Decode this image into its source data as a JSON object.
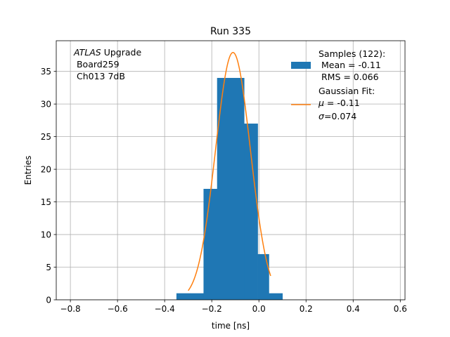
{
  "chart_data": {
    "type": "bar",
    "title": "Run 335",
    "xlabel": "time [ns]",
    "ylabel": "Entries",
    "xlim": [
      -0.86,
      0.62
    ],
    "ylim": [
      0,
      39.7
    ],
    "grid": true,
    "xticks": [
      -0.8,
      -0.6,
      -0.4,
      -0.2,
      0.0,
      0.2,
      0.4,
      0.6
    ],
    "xtick_labels": [
      "−0.8",
      "−0.6",
      "−0.4",
      "−0.2",
      "0.0",
      "0.2",
      "0.4",
      "0.6"
    ],
    "yticks": [
      0,
      5,
      10,
      15,
      20,
      25,
      30,
      35
    ],
    "ytick_labels": [
      "0",
      "5",
      "10",
      "15",
      "20",
      "25",
      "30",
      "35"
    ],
    "histogram": {
      "bin_edges": [
        -0.35,
        -0.2925,
        -0.235,
        -0.1775,
        -0.12,
        -0.0625,
        -0.005,
        0.0425,
        0.1
      ],
      "counts": [
        1,
        1,
        17,
        34,
        34,
        27,
        7,
        1
      ],
      "color": "#1f77b4"
    },
    "gaussian_fit": {
      "amplitude": 37.9,
      "mu": -0.11,
      "sigma": 0.074,
      "x_range": [
        -0.3,
        0.05
      ],
      "color": "#ff7f0e"
    },
    "annotation": {
      "italic": "ATLAS",
      "rest": " Upgrade",
      "lines": [
        " Board259",
        " Ch013 7dB"
      ]
    },
    "legend": {
      "location": "upper right",
      "samples_lines": [
        "Samples (122):",
        " Mean = -0.11",
        " RMS = 0.066"
      ],
      "fit_line1": "Gaussian Fit:",
      "fit_mu_symbol": "μ",
      "fit_mu_value": " = -0.11",
      "fit_sigma_symbol": "σ",
      "fit_sigma_value": "=0.074"
    }
  }
}
